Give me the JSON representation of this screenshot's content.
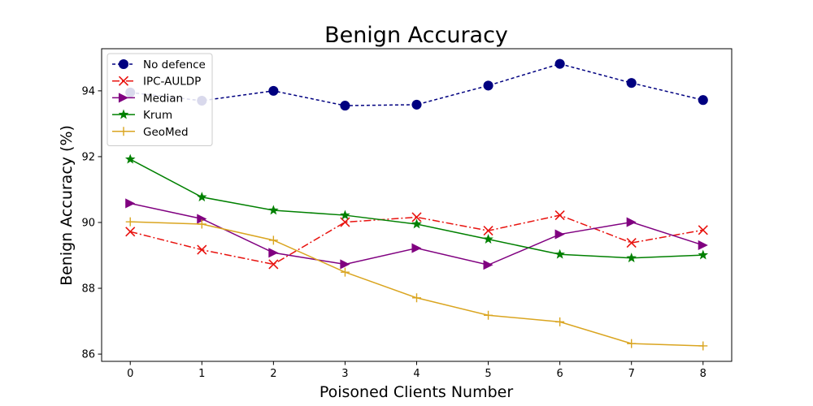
{
  "chart_data": {
    "type": "line",
    "title": "Benign Accuracy",
    "xlabel": "Poisoned Clients Number",
    "ylabel": "Benign Accuracy (%)",
    "x": [
      0,
      1,
      2,
      3,
      4,
      5,
      6,
      7,
      8
    ],
    "x_ticks": [
      "0",
      "1",
      "2",
      "3",
      "4",
      "5",
      "6",
      "7",
      "8"
    ],
    "y_ticks": [
      "86",
      "88",
      "90",
      "92",
      "94"
    ],
    "ylim": [
      85.78,
      95.28
    ],
    "xlim": [
      -0.4,
      8.4
    ],
    "grid": false,
    "legend_position": "top-left",
    "series": [
      {
        "name": "No defence",
        "color": "#000080",
        "linestyle": "dashed",
        "marker": "circle",
        "values": [
          93.95,
          93.7,
          94.0,
          93.55,
          93.58,
          94.16,
          94.82,
          94.24,
          93.72
        ]
      },
      {
        "name": "IPC-AULDP",
        "color": "#e8130f",
        "linestyle": "dashdot",
        "marker": "x",
        "values": [
          89.72,
          89.17,
          88.73,
          90.01,
          90.16,
          89.75,
          90.22,
          89.38,
          89.77
        ]
      },
      {
        "name": "Median",
        "color": "#800080",
        "linestyle": "solid",
        "marker": "triangle-right",
        "values": [
          90.58,
          90.11,
          89.08,
          88.73,
          89.22,
          88.71,
          89.64,
          90.01,
          89.31
        ]
      },
      {
        "name": "Krum",
        "color": "#008000",
        "linestyle": "solid",
        "marker": "star",
        "values": [
          91.92,
          90.77,
          90.37,
          90.22,
          89.95,
          89.49,
          89.03,
          88.92,
          89.01
        ]
      },
      {
        "name": "GeoMed",
        "color": "#daa520",
        "linestyle": "solid",
        "marker": "plus",
        "values": [
          90.02,
          89.95,
          89.46,
          88.49,
          87.71,
          87.18,
          86.98,
          86.32,
          86.25
        ]
      }
    ]
  }
}
